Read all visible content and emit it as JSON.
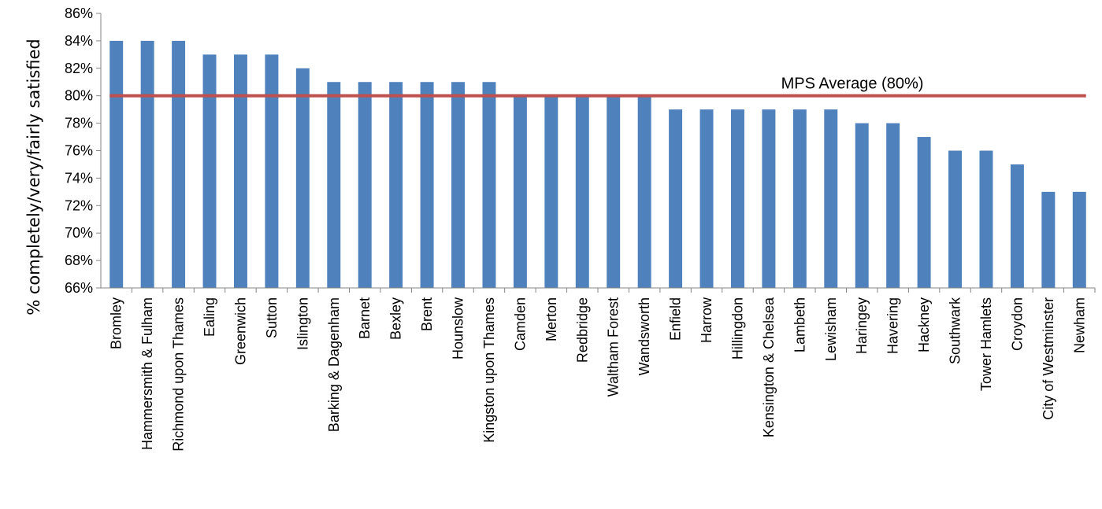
{
  "chart_data": {
    "type": "bar",
    "ylabel": "% completely/very/fairly satisfied",
    "ylim": [
      66,
      86
    ],
    "ytick_step": 2,
    "ytick_suffix": "%",
    "grid": false,
    "categories": [
      "Bromley",
      "Hammersmith & Fulham",
      "Richmond upon Thames",
      "Ealing",
      "Greenwich",
      "Sutton",
      "Islington",
      "Barking & Dagenham",
      "Barnet",
      "Bexley",
      "Brent",
      "Hounslow",
      "Kingston upon Thames",
      "Camden",
      "Merton",
      "Redbridge",
      "Waltham Forest",
      "Wandsworth",
      "Enfield",
      "Harrow",
      "Hillingdon",
      "Kensington & Chelsea",
      "Lambeth",
      "Lewisham",
      "Haringey",
      "Havering",
      "Hackney",
      "Southwark",
      "Tower Hamlets",
      "Croydon",
      "City of Westminster",
      "Newham"
    ],
    "values": [
      84,
      84,
      84,
      83,
      83,
      83,
      82,
      81,
      81,
      81,
      81,
      81,
      81,
      80,
      80,
      80,
      80,
      80,
      79,
      79,
      79,
      79,
      79,
      79,
      78,
      78,
      77,
      76,
      76,
      75,
      73,
      73
    ],
    "bar_color": "#4F81BD",
    "reference_line": {
      "label": "MPS Average (80%)",
      "value": 80,
      "color": "#C0504D"
    }
  }
}
